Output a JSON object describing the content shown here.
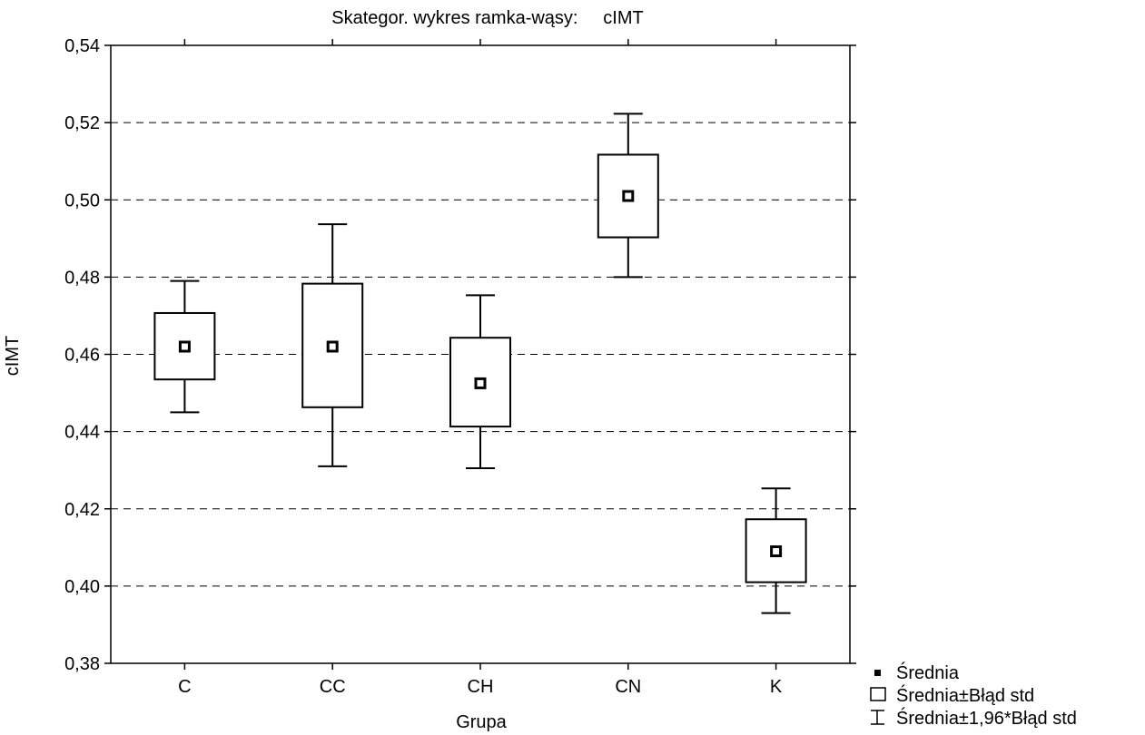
{
  "chart_data": {
    "type": "box",
    "title": "Skategor. wykres ramka-wąsy:     cIMT",
    "xlabel": "Grupa",
    "ylabel": "cIMT",
    "ylim": [
      0.38,
      0.54
    ],
    "yticks": [
      0.38,
      0.4,
      0.42,
      0.44,
      0.46,
      0.48,
      0.5,
      0.52,
      0.54
    ],
    "ytick_labels": [
      "0,38",
      "0,40",
      "0,42",
      "0,44",
      "0,46",
      "0,48",
      "0,50",
      "0,52",
      "0,54"
    ],
    "grid": "horizontal-dashed",
    "categories": [
      "C",
      "CC",
      "CH",
      "CN",
      "K"
    ],
    "groups": [
      {
        "category": "C",
        "mean": 0.462,
        "box_low": 0.4535,
        "box_high": 0.4707,
        "whisker_low": 0.445,
        "whisker_high": 0.479
      },
      {
        "category": "CC",
        "mean": 0.462,
        "box_low": 0.4463,
        "box_high": 0.4783,
        "whisker_low": 0.431,
        "whisker_high": 0.4937
      },
      {
        "category": "CH",
        "mean": 0.4525,
        "box_low": 0.4413,
        "box_high": 0.4643,
        "whisker_low": 0.4305,
        "whisker_high": 0.4753
      },
      {
        "category": "CN",
        "mean": 0.501,
        "box_low": 0.4903,
        "box_high": 0.5117,
        "whisker_low": 0.48,
        "whisker_high": 0.5223
      },
      {
        "category": "K",
        "mean": 0.409,
        "box_low": 0.401,
        "box_high": 0.4173,
        "whisker_low": 0.393,
        "whisker_high": 0.4253
      }
    ],
    "legend": {
      "placement": "bottom-right",
      "entries": [
        {
          "marker": "mean-point",
          "label": "Średnia"
        },
        {
          "marker": "box",
          "label": "Średnia±Błąd std"
        },
        {
          "marker": "whisker",
          "label": "Średnia±1,96*Błąd std"
        }
      ]
    }
  }
}
